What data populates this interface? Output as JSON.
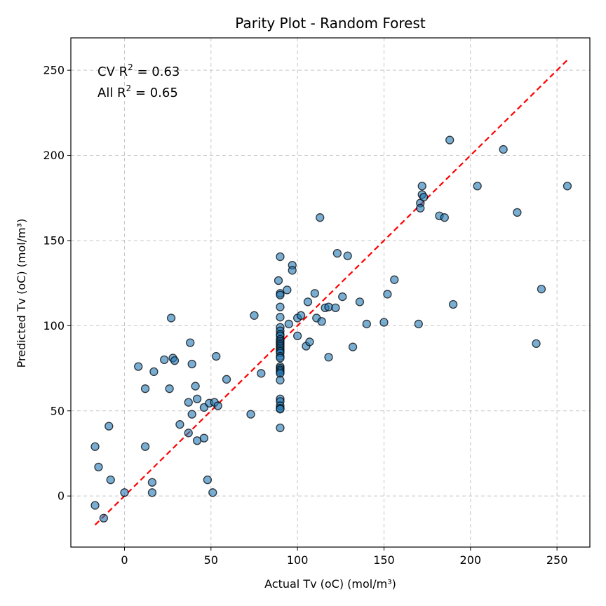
{
  "chart_data": {
    "type": "scatter",
    "title": "Parity Plot - Random Forest",
    "xlabel": "Actual Tv (oC) (mol/m³)",
    "ylabel": "Predicted Tv (oC) (mol/m³)",
    "xlim": [
      -31,
      269
    ],
    "ylim": [
      -30,
      269
    ],
    "xticks": [
      0,
      50,
      100,
      150,
      200,
      250
    ],
    "yticks": [
      0,
      50,
      100,
      150,
      200,
      250
    ],
    "grid": true,
    "annotations": {
      "cv_label": "CV R",
      "cv_exp": "2",
      "cv_value": " = 0.63",
      "all_label": "All R",
      "all_exp": "2",
      "all_value": " = 0.65"
    },
    "parity_line": {
      "from": -17,
      "to": 256,
      "color": "#ff0000",
      "style": "dashed"
    },
    "colors": {
      "point_fill": "#1f77b4",
      "point_edge": "#000000",
      "grid": "#b0b0b0"
    },
    "points": [
      [
        -17,
        29
      ],
      [
        -15,
        17
      ],
      [
        -17,
        -5.5
      ],
      [
        -12,
        -13
      ],
      [
        -9,
        41
      ],
      [
        -8,
        9.5
      ],
      [
        0,
        2
      ],
      [
        8,
        76
      ],
      [
        12,
        63
      ],
      [
        12,
        29
      ],
      [
        16,
        8
      ],
      [
        16,
        2
      ],
      [
        17,
        73
      ],
      [
        23,
        80
      ],
      [
        26,
        63
      ],
      [
        27,
        104.5
      ],
      [
        28,
        81
      ],
      [
        29,
        79.5
      ],
      [
        32,
        42
      ],
      [
        37,
        37
      ],
      [
        37,
        55
      ],
      [
        38,
        90
      ],
      [
        39,
        77.5
      ],
      [
        39,
        48
      ],
      [
        41,
        64.5
      ],
      [
        42,
        32.5
      ],
      [
        42,
        57
      ],
      [
        46,
        34
      ],
      [
        46,
        52
      ],
      [
        48,
        9.5
      ],
      [
        49,
        54.5
      ],
      [
        51,
        2
      ],
      [
        52,
        55
      ],
      [
        53,
        82
      ],
      [
        54,
        53
      ],
      [
        59,
        68.5
      ],
      [
        73,
        48
      ],
      [
        75,
        106
      ],
      [
        79,
        72
      ],
      [
        89,
        126.5
      ],
      [
        90,
        140.5
      ],
      [
        90,
        119
      ],
      [
        90,
        118
      ],
      [
        90,
        111
      ],
      [
        90,
        105
      ],
      [
        90,
        99
      ],
      [
        90,
        97
      ],
      [
        90,
        95
      ],
      [
        90,
        94
      ],
      [
        90,
        92
      ],
      [
        90,
        91
      ],
      [
        90,
        90
      ],
      [
        90,
        89
      ],
      [
        90,
        88
      ],
      [
        90,
        87
      ],
      [
        90,
        86
      ],
      [
        90,
        85
      ],
      [
        90,
        84
      ],
      [
        90,
        82
      ],
      [
        90,
        81
      ],
      [
        90,
        76
      ],
      [
        90,
        75
      ],
      [
        90,
        74
      ],
      [
        90,
        73
      ],
      [
        90,
        72
      ],
      [
        90,
        68
      ],
      [
        90,
        57
      ],
      [
        90,
        55.5
      ],
      [
        90,
        53
      ],
      [
        90,
        51.5
      ],
      [
        90,
        51
      ],
      [
        90,
        40
      ],
      [
        94,
        121
      ],
      [
        95,
        101
      ],
      [
        97,
        135.5
      ],
      [
        97,
        132.5
      ],
      [
        100,
        104.5
      ],
      [
        100,
        94
      ],
      [
        102,
        106
      ],
      [
        105,
        88
      ],
      [
        106,
        114
      ],
      [
        107,
        90.5
      ],
      [
        110,
        119
      ],
      [
        111,
        104.5
      ],
      [
        113,
        163.5
      ],
      [
        114,
        102.5
      ],
      [
        116,
        110.5
      ],
      [
        118,
        81.5
      ],
      [
        118,
        111
      ],
      [
        122,
        110.5
      ],
      [
        123,
        142.5
      ],
      [
        126,
        117
      ],
      [
        129,
        141
      ],
      [
        132,
        87.5
      ],
      [
        136,
        114
      ],
      [
        140,
        101
      ],
      [
        150,
        102
      ],
      [
        152,
        118.5
      ],
      [
        156,
        127
      ],
      [
        170,
        101
      ],
      [
        171,
        172
      ],
      [
        171,
        169
      ],
      [
        172,
        182
      ],
      [
        172,
        177
      ],
      [
        173,
        175.5
      ],
      [
        182,
        164.5
      ],
      [
        185,
        163.5
      ],
      [
        188,
        209
      ],
      [
        190,
        112.5
      ],
      [
        204,
        182
      ],
      [
        219,
        203.5
      ],
      [
        227,
        166.5
      ],
      [
        238,
        89.5
      ],
      [
        241,
        121.5
      ],
      [
        256,
        182
      ]
    ]
  }
}
